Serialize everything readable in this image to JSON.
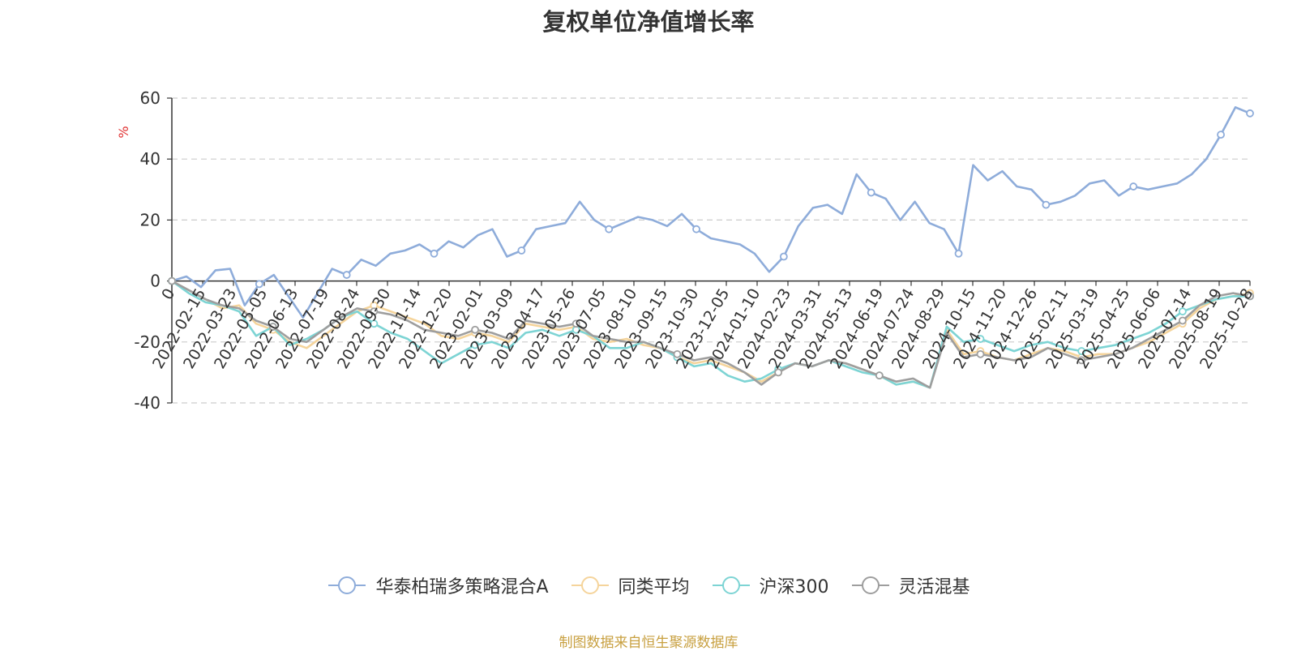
{
  "chart_data": {
    "type": "line",
    "title": "复权单位净值增长率",
    "ylabel": "%",
    "ylim": [
      -40,
      60
    ],
    "yticks": [
      60,
      40,
      20,
      0,
      -20,
      -40
    ],
    "grid": true,
    "legend_position": "bottom",
    "x_tick_labels": [
      "0",
      "2022-02-15",
      "2022-03-23",
      "2022-05-05",
      "2022-06-13",
      "2022-07-19",
      "2022-08-24",
      "2022-09-30",
      "2022-11-14",
      "2022-12-20",
      "2023-02-01",
      "2023-03-09",
      "2023-04-17",
      "2023-05-26",
      "2023-07-05",
      "2023-08-10",
      "2023-09-15",
      "2023-10-30",
      "2023-12-05",
      "2024-01-10",
      "2024-02-23",
      "2024-03-31",
      "2024-05-13",
      "2024-06-19",
      "2024-07-24",
      "2024-08-29",
      "2024-10-15",
      "2024-11-20",
      "2024-12-26",
      "2025-02-11",
      "2025-03-19",
      "2025-04-25",
      "2025-06-06",
      "2025-07-14",
      "2025-08-19",
      "2025-10-28"
    ],
    "series": [
      {
        "name": "华泰柏瑞多策略混合A",
        "color": "#8eacda",
        "values": [
          0,
          1.5,
          -2,
          3.5,
          4,
          -8,
          -1,
          2,
          -5,
          -12,
          -4,
          4,
          2,
          7,
          5,
          9,
          10,
          12,
          9,
          13,
          11,
          15,
          17,
          8,
          10,
          17,
          18,
          19,
          26,
          20,
          17,
          19,
          21,
          20,
          18,
          22,
          17,
          14,
          13,
          12,
          9,
          3,
          8,
          18,
          24,
          25,
          22,
          35,
          29,
          27,
          20,
          26,
          19,
          17,
          9,
          38,
          33,
          36,
          31,
          30,
          25,
          26,
          28,
          32,
          33,
          28,
          31,
          30,
          31,
          32,
          35,
          40,
          48,
          57,
          55
        ]
      },
      {
        "name": "同类平均",
        "color": "#f5d49b",
        "values": [
          0,
          -3,
          -6,
          -9,
          -8,
          -14,
          -16,
          -20,
          -22,
          -18,
          -14,
          -10,
          -8,
          -10,
          -12,
          -14,
          -18,
          -19,
          -17,
          -18,
          -20,
          -14,
          -15,
          -16,
          -15,
          -19,
          -20,
          -19,
          -21,
          -22,
          -25,
          -27,
          -26,
          -28,
          -30,
          -33,
          -30,
          -27,
          -28,
          -26,
          -27,
          -29,
          -31,
          -34,
          -33,
          -35,
          -16,
          -24,
          -23,
          -25,
          -26,
          -24,
          -22,
          -23,
          -25,
          -24,
          -24,
          -22,
          -20,
          -17,
          -14,
          -9,
          -6,
          -5,
          -4
        ]
      },
      {
        "name": "沪深300",
        "color": "#7dd4d4",
        "values": [
          0,
          -4,
          -7,
          -8,
          -10,
          -18,
          -15,
          -21,
          -19,
          -16,
          -12,
          -10,
          -14,
          -17,
          -19,
          -23,
          -27,
          -24,
          -21,
          -20,
          -22,
          -17,
          -16,
          -18,
          -16,
          -18,
          -22,
          -22,
          -20,
          -22,
          -25,
          -28,
          -27,
          -31,
          -33,
          -32,
          -29,
          -27,
          -28,
          -26,
          -28,
          -30,
          -31,
          -34,
          -33,
          -35,
          -15,
          -20,
          -19,
          -21,
          -23,
          -21,
          -20,
          -22,
          -23,
          -22,
          -21,
          -19,
          -17,
          -14,
          -10,
          -8,
          -6,
          -5,
          -5
        ]
      },
      {
        "name": "灵活混基",
        "color": "#9e9e9e",
        "values": [
          0,
          -3,
          -6,
          -8,
          -9,
          -13,
          -15,
          -19,
          -20,
          -16,
          -12,
          -9,
          -10,
          -11,
          -13,
          -16,
          -17,
          -18,
          -16,
          -17,
          -19,
          -13,
          -14,
          -15,
          -14,
          -18,
          -19,
          -20,
          -20,
          -22,
          -24,
          -26,
          -25,
          -27,
          -30,
          -34,
          -30,
          -27,
          -28,
          -26,
          -27,
          -29,
          -31,
          -33,
          -32,
          -35,
          -17,
          -25,
          -24,
          -25,
          -26,
          -25,
          -22,
          -24,
          -26,
          -25,
          -24,
          -22,
          -19,
          -16,
          -13,
          -8,
          -5,
          -4,
          -5
        ]
      }
    ]
  },
  "legend": {
    "items": [
      {
        "label": "华泰柏瑞多策略混合A",
        "color": "#8eacda"
      },
      {
        "label": "同类平均",
        "color": "#f5d49b"
      },
      {
        "label": "沪深300",
        "color": "#7dd4d4"
      },
      {
        "label": "灵活混基",
        "color": "#9e9e9e"
      }
    ]
  },
  "source_note": "制图数据来自恒生聚源数据库"
}
